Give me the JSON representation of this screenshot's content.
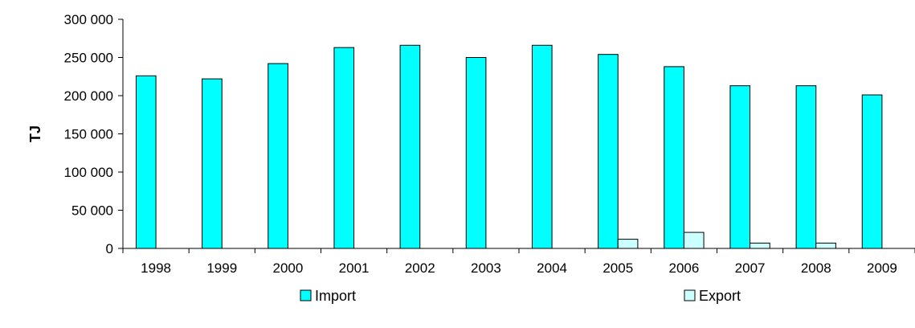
{
  "chart_data": {
    "type": "bar",
    "categories": [
      "1998",
      "1999",
      "2000",
      "2001",
      "2002",
      "2003",
      "2004",
      "2005",
      "2006",
      "2007",
      "2008",
      "2009"
    ],
    "series": [
      {
        "name": "Import",
        "color": "#00ffff",
        "values": [
          226000,
          222000,
          242000,
          263000,
          266000,
          250000,
          266000,
          254000,
          238000,
          213000,
          213000,
          201000
        ]
      },
      {
        "name": "Export",
        "color": "#ccffff",
        "values": [
          0,
          0,
          0,
          0,
          0,
          0,
          0,
          12000,
          21000,
          7000,
          7000,
          0
        ]
      }
    ],
    "ylabel": "TJ",
    "ylim": [
      0,
      300000
    ],
    "yticks": [
      0,
      50000,
      100000,
      150000,
      200000,
      250000,
      300000
    ],
    "ytick_labels": [
      "0",
      "50 000",
      "100 000",
      "150 000",
      "200 000",
      "250 000",
      "300 000"
    ],
    "grid": false,
    "legend_position": "bottom"
  }
}
